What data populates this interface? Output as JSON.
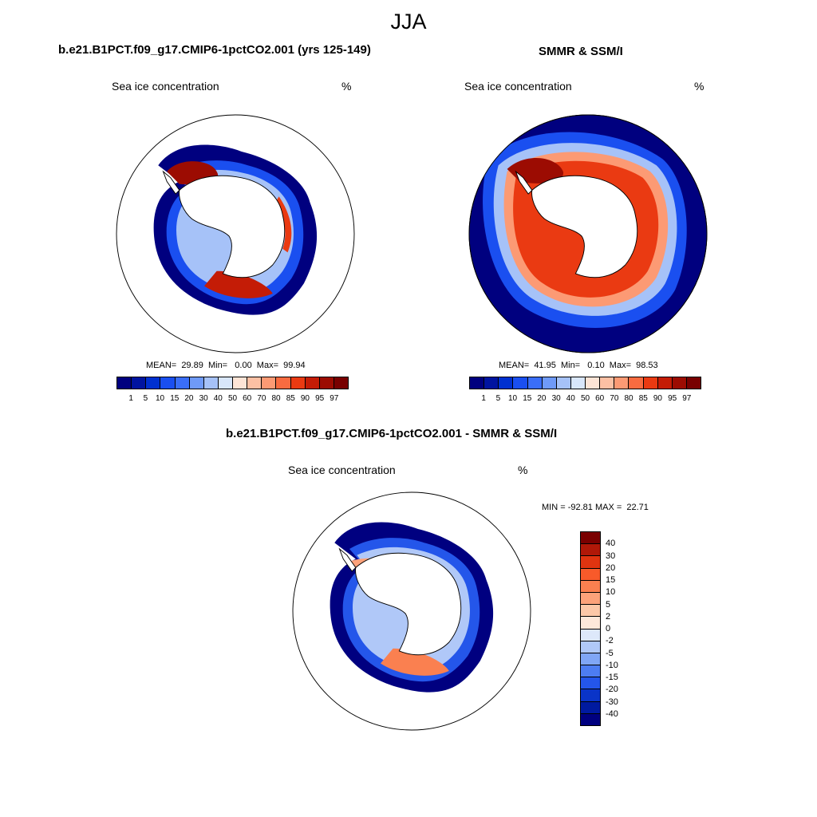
{
  "title": "JJA",
  "panels": [
    {
      "title": "b.e21.B1PCT.f09_g17.CMIP6-1pctCO2.001 (yrs 125-149)",
      "variable": "Sea ice concentration",
      "units": "%",
      "stats": "MEAN=  29.89  Min=   0.00  Max=  99.94"
    },
    {
      "title": "SMMR & SSM/I",
      "variable": "Sea ice concentration",
      "units": "%",
      "stats": "MEAN=  41.95  Min=   0.10  Max=  98.53"
    },
    {
      "title": "b.e21.B1PCT.f09_g17.CMIP6-1pctCO2.001 - SMMR & SSM/I",
      "variable": "Sea ice concentration",
      "units": "%",
      "stats": "MIN = -92.81 MAX =  22.71"
    }
  ],
  "colorbar_levels": [
    "1",
    "5",
    "10",
    "15",
    "20",
    "30",
    "40",
    "50",
    "60",
    "70",
    "80",
    "85",
    "90",
    "95",
    "97"
  ],
  "colorbar_colors": [
    "#00007f",
    "#0014a0",
    "#0030d0",
    "#1a4ff0",
    "#3a6ef8",
    "#6f9af8",
    "#a6c2f8",
    "#d8e6fa",
    "#fde4d6",
    "#fcc0a4",
    "#fc9a74",
    "#f86b40",
    "#ea3a12",
    "#c41c06",
    "#9c0c02",
    "#780000"
  ],
  "diff_levels": [
    "40",
    "30",
    "20",
    "15",
    "10",
    "5",
    "2",
    "0",
    "-2",
    "-5",
    "-10",
    "-15",
    "-20",
    "-30",
    "-40"
  ],
  "diff_colors": [
    "#7a0000",
    "#b01808",
    "#e03410",
    "#f85a2a",
    "#fa8050",
    "#fca27a",
    "#fcc8a8",
    "#fde8da",
    "#dde8fa",
    "#b0c8f8",
    "#80a6f6",
    "#4d7df2",
    "#2456ea",
    "#0a34c8",
    "#001aa0",
    "#000080"
  ],
  "land_color": "#ffffff",
  "coast_color": "#000000"
}
